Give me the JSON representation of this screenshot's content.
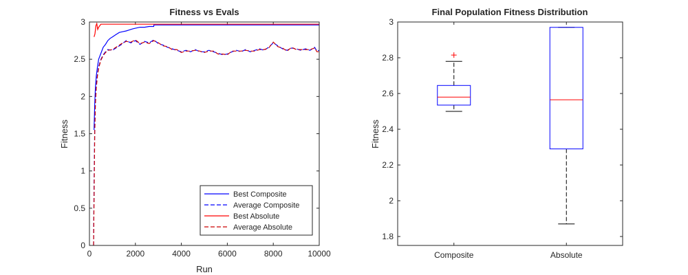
{
  "chart_data": [
    {
      "type": "line",
      "title": "Fitness vs Evals",
      "xlabel": "Run",
      "ylabel": "Fitness",
      "xlim": [
        0,
        10000
      ],
      "ylim": [
        0,
        3
      ],
      "xticks": [
        0,
        2000,
        4000,
        6000,
        8000,
        10000
      ],
      "xtick_labels": [
        "0",
        "2000",
        "4000",
        "6000",
        "8000",
        "10000"
      ],
      "yticks": [
        0,
        0.5,
        1,
        1.5,
        2,
        2.5,
        3
      ],
      "ytick_labels": [
        "0",
        "0.5",
        "1",
        "1.5",
        "2",
        "2.5",
        "3"
      ],
      "grid": false,
      "legend_position": "bottom-right",
      "series": [
        {
          "name": "Best Composite",
          "color": "#0000ff",
          "dash": "solid",
          "points": [
            [
              200,
              1.55
            ],
            [
              230,
              1.9
            ],
            [
              260,
              2.12
            ],
            [
              300,
              2.28
            ],
            [
              350,
              2.4
            ],
            [
              400,
              2.5
            ],
            [
              500,
              2.58
            ],
            [
              600,
              2.66
            ],
            [
              700,
              2.7
            ],
            [
              800,
              2.75
            ],
            [
              900,
              2.78
            ],
            [
              1000,
              2.8
            ],
            [
              1150,
              2.83
            ],
            [
              1300,
              2.86
            ],
            [
              1450,
              2.87
            ],
            [
              1600,
              2.88
            ],
            [
              1700,
              2.89
            ],
            [
              1800,
              2.9
            ],
            [
              1900,
              2.91
            ],
            [
              2050,
              2.92
            ],
            [
              2200,
              2.93
            ],
            [
              2400,
              2.93
            ],
            [
              2600,
              2.94
            ],
            [
              2800,
              2.94
            ],
            [
              2801,
              2.96
            ],
            [
              10000,
              2.96
            ]
          ]
        },
        {
          "name": "Average Composite",
          "color": "#0000ff",
          "dash": "dashed",
          "points": [
            [
              180,
              0
            ],
            [
              200,
              0.8
            ],
            [
              230,
              1.6
            ],
            [
              260,
              1.95
            ],
            [
              300,
              2.15
            ],
            [
              350,
              2.3
            ],
            [
              400,
              2.4
            ],
            [
              500,
              2.5
            ],
            [
              600,
              2.56
            ],
            [
              700,
              2.6
            ],
            [
              800,
              2.63
            ],
            [
              1000,
              2.62
            ],
            [
              1200,
              2.66
            ],
            [
              1400,
              2.7
            ],
            [
              1600,
              2.75
            ],
            [
              1800,
              2.72
            ],
            [
              2000,
              2.75
            ],
            [
              2200,
              2.7
            ],
            [
              2400,
              2.74
            ],
            [
              2600,
              2.72
            ],
            [
              2800,
              2.76
            ],
            [
              3000,
              2.71
            ],
            [
              3200,
              2.69
            ],
            [
              3400,
              2.66
            ],
            [
              3600,
              2.64
            ],
            [
              3800,
              2.62
            ],
            [
              4000,
              2.6
            ],
            [
              4200,
              2.62
            ],
            [
              4400,
              2.6
            ],
            [
              4600,
              2.63
            ],
            [
              4800,
              2.6
            ],
            [
              5000,
              2.6
            ],
            [
              5200,
              2.62
            ],
            [
              5400,
              2.6
            ],
            [
              5600,
              2.58
            ],
            [
              5800,
              2.56
            ],
            [
              6000,
              2.57
            ],
            [
              6200,
              2.6
            ],
            [
              6400,
              2.62
            ],
            [
              6600,
              2.6
            ],
            [
              6800,
              2.63
            ],
            [
              7000,
              2.6
            ],
            [
              7200,
              2.62
            ],
            [
              7400,
              2.64
            ],
            [
              7600,
              2.62
            ],
            [
              7800,
              2.66
            ],
            [
              8000,
              2.72
            ],
            [
              8200,
              2.68
            ],
            [
              8400,
              2.64
            ],
            [
              8600,
              2.62
            ],
            [
              8800,
              2.65
            ],
            [
              9000,
              2.64
            ],
            [
              9200,
              2.62
            ],
            [
              9400,
              2.64
            ],
            [
              9600,
              2.62
            ],
            [
              9800,
              2.66
            ],
            [
              9900,
              2.61
            ],
            [
              10000,
              2.62
            ]
          ]
        },
        {
          "name": "Best Absolute",
          "color": "#ff0000",
          "dash": "solid",
          "points": [
            [
              200,
              2.8
            ],
            [
              240,
              2.84
            ],
            [
              280,
              2.95
            ],
            [
              320,
              2.98
            ],
            [
              360,
              2.9
            ],
            [
              400,
              2.93
            ],
            [
              450,
              2.95
            ],
            [
              500,
              2.97
            ],
            [
              10000,
              2.97
            ]
          ]
        },
        {
          "name": "Average Absolute",
          "color": "#cc0000",
          "dash": "dashed",
          "points": [
            [
              180,
              0
            ],
            [
              200,
              0.6
            ],
            [
              230,
              1.5
            ],
            [
              260,
              1.9
            ],
            [
              300,
              2.12
            ],
            [
              350,
              2.28
            ],
            [
              400,
              2.38
            ],
            [
              500,
              2.49
            ],
            [
              600,
              2.55
            ],
            [
              700,
              2.59
            ],
            [
              800,
              2.62
            ],
            [
              1000,
              2.63
            ],
            [
              1200,
              2.67
            ],
            [
              1400,
              2.71
            ],
            [
              1600,
              2.74
            ],
            [
              1800,
              2.73
            ],
            [
              2000,
              2.76
            ],
            [
              2200,
              2.71
            ],
            [
              2400,
              2.73
            ],
            [
              2600,
              2.71
            ],
            [
              2800,
              2.75
            ],
            [
              3000,
              2.72
            ],
            [
              3200,
              2.68
            ],
            [
              3400,
              2.67
            ],
            [
              3600,
              2.63
            ],
            [
              3800,
              2.63
            ],
            [
              4000,
              2.59
            ],
            [
              4200,
              2.61
            ],
            [
              4400,
              2.61
            ],
            [
              4600,
              2.62
            ],
            [
              4800,
              2.61
            ],
            [
              5000,
              2.59
            ],
            [
              5200,
              2.61
            ],
            [
              5400,
              2.61
            ],
            [
              5600,
              2.57
            ],
            [
              5800,
              2.57
            ],
            [
              6000,
              2.56
            ],
            [
              6200,
              2.61
            ],
            [
              6400,
              2.61
            ],
            [
              6600,
              2.61
            ],
            [
              6800,
              2.62
            ],
            [
              7000,
              2.61
            ],
            [
              7200,
              2.61
            ],
            [
              7400,
              2.63
            ],
            [
              7600,
              2.63
            ],
            [
              7800,
              2.65
            ],
            [
              8000,
              2.73
            ],
            [
              8200,
              2.67
            ],
            [
              8400,
              2.65
            ],
            [
              8600,
              2.61
            ],
            [
              8800,
              2.66
            ],
            [
              9000,
              2.63
            ],
            [
              9200,
              2.63
            ],
            [
              9400,
              2.63
            ],
            [
              9600,
              2.63
            ],
            [
              9800,
              2.65
            ],
            [
              9900,
              2.6
            ],
            [
              10000,
              2.6
            ]
          ]
        }
      ]
    },
    {
      "type": "box",
      "title": "Final Population Fitness Distribution",
      "xlabel": "",
      "ylabel": "Fitness",
      "ylim": [
        1.75,
        3.0
      ],
      "yticks": [
        1.8,
        2,
        2.2,
        2.4,
        2.6,
        2.8,
        3
      ],
      "ytick_labels": [
        "1.8",
        "2",
        "2.2",
        "2.4",
        "2.6",
        "2.8",
        "3"
      ],
      "categories": [
        "Composite",
        "Absolute"
      ],
      "boxes": [
        {
          "category": "Composite",
          "whisker_low": 2.5,
          "q1": 2.535,
          "median": 2.58,
          "q3": 2.645,
          "whisker_high": 2.78,
          "outliers": [
            2.815
          ]
        },
        {
          "category": "Absolute",
          "whisker_low": 1.87,
          "q1": 2.29,
          "median": 2.565,
          "q3": 2.97,
          "whisker_high": 2.97,
          "outliers": []
        }
      ],
      "colors": {
        "box": "#0000ff",
        "median": "#ff0000",
        "whisker": "#000000",
        "outlier": "#ff0000"
      }
    }
  ]
}
